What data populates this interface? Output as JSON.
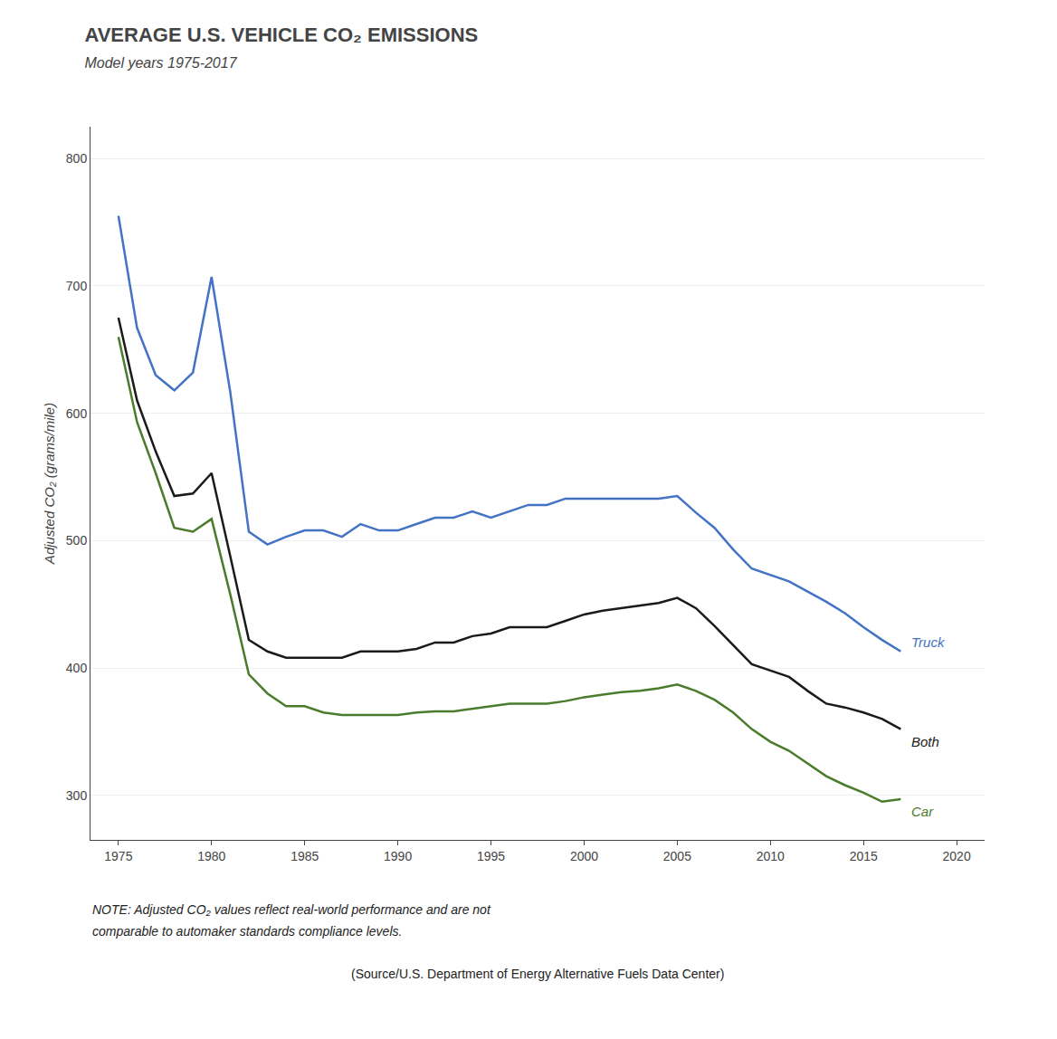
{
  "chart_data": {
    "type": "line",
    "title": "AVERAGE U.S. VEHICLE CO₂ EMISSIONS",
    "subtitle": "Model years 1975-2017",
    "y_label": "Adjusted CO₂ (grams/mile)",
    "annotations": [
      "NOTE: Adjusted CO₂ values reflect real-world performance and are not",
      "comparable to automaker standards compliance levels.",
      "(Source/U.S. Department of Energy Alternative Fuels Data Center)"
    ],
    "x": [
      1975,
      1976,
      1977,
      1978,
      1979,
      1980,
      1981,
      1982,
      1983,
      1984,
      1985,
      1986,
      1987,
      1988,
      1989,
      1990,
      1991,
      1992,
      1993,
      1994,
      1995,
      1996,
      1997,
      1998,
      1999,
      2000,
      2001,
      2002,
      2003,
      2004,
      2005,
      2006,
      2007,
      2008,
      2009,
      2010,
      2011,
      2012,
      2013,
      2014,
      2015,
      2016,
      2017
    ],
    "series": [
      {
        "name": "Truck",
        "color": "#4472C4",
        "values": [
          755,
          667,
          630,
          618,
          632,
          707,
          617,
          507,
          497,
          503,
          508,
          508,
          503,
          513,
          508,
          508,
          513,
          518,
          518,
          523,
          518,
          523,
          528,
          528,
          533,
          533,
          533,
          533,
          533,
          533,
          535,
          522,
          510,
          493,
          478,
          473,
          468,
          460,
          452,
          443,
          432,
          422,
          413
        ]
      },
      {
        "name": "Both",
        "color": "#1a1a1a",
        "values": [
          675,
          610,
          570,
          535,
          537,
          553,
          488,
          422,
          413,
          408,
          408,
          408,
          408,
          413,
          413,
          413,
          415,
          420,
          420,
          425,
          427,
          432,
          432,
          432,
          437,
          442,
          445,
          447,
          449,
          451,
          455,
          447,
          433,
          418,
          403,
          398,
          393,
          382,
          372,
          369,
          365,
          360,
          352
        ]
      },
      {
        "name": "Car",
        "color": "#4a7c2b",
        "values": [
          660,
          593,
          553,
          510,
          507,
          517,
          458,
          395,
          380,
          370,
          370,
          365,
          363,
          363,
          363,
          363,
          365,
          366,
          366,
          368,
          370,
          372,
          372,
          372,
          374,
          377,
          379,
          381,
          382,
          384,
          387,
          382,
          375,
          365,
          352,
          342,
          335,
          325,
          315,
          308,
          302,
          295,
          297
        ]
      }
    ],
    "xlim": [
      1973.5,
      2021.5
    ],
    "xticks": [
      1975,
      1980,
      1985,
      1990,
      1995,
      2000,
      2005,
      2010,
      2015,
      2020
    ],
    "ylim": [
      265,
      825
    ],
    "yticks": [
      300,
      400,
      500,
      600,
      700,
      800
    ],
    "grid": true
  }
}
